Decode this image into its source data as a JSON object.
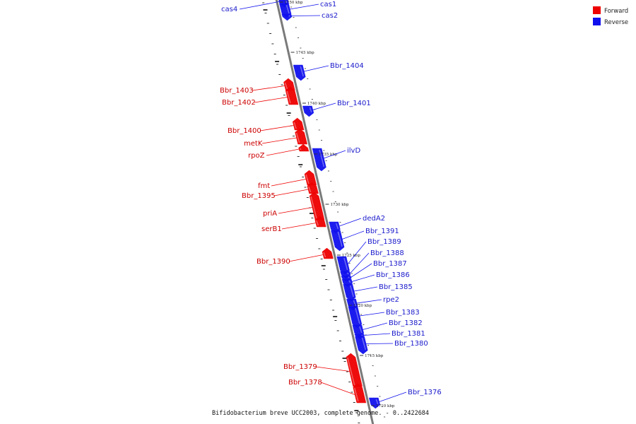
{
  "legend": {
    "forward_label": "Forward",
    "reverse_label": "Reverse",
    "forward_color": "#ee0000",
    "reverse_color": "#1010ee"
  },
  "caption": "Bifidobacterium breve UCC2003, complete genome. - 0..2422684",
  "scale_ticks": [
    "1750 kbp",
    "1745 kbp",
    "1740 kbp",
    "1735 kbp",
    "1730 kbp",
    "1725 kbp",
    "1720 kbp",
    "1715 kbp",
    "1710 kbp"
  ],
  "genes": [
    {
      "name": "cas4",
      "strand": "reverse"
    },
    {
      "name": "cas1",
      "strand": "reverse"
    },
    {
      "name": "cas2",
      "strand": "reverse"
    },
    {
      "name": "Bbr_1404",
      "strand": "reverse"
    },
    {
      "name": "Bbr_1403",
      "strand": "forward"
    },
    {
      "name": "Bbr_1402",
      "strand": "forward"
    },
    {
      "name": "Bbr_1401",
      "strand": "reverse"
    },
    {
      "name": "Bbr_1400",
      "strand": "forward"
    },
    {
      "name": "metK",
      "strand": "forward"
    },
    {
      "name": "rpoZ",
      "strand": "forward"
    },
    {
      "name": "ilvD",
      "strand": "reverse"
    },
    {
      "name": "fmt",
      "strand": "forward"
    },
    {
      "name": "Bbr_1395",
      "strand": "forward"
    },
    {
      "name": "priA",
      "strand": "forward"
    },
    {
      "name": "serB1",
      "strand": "forward"
    },
    {
      "name": "dedA2",
      "strand": "reverse"
    },
    {
      "name": "Bbr_1391",
      "strand": "reverse"
    },
    {
      "name": "Bbr_1389",
      "strand": "reverse"
    },
    {
      "name": "Bbr_1388",
      "strand": "reverse"
    },
    {
      "name": "Bbr_1387",
      "strand": "reverse"
    },
    {
      "name": "Bbr_1386",
      "strand": "reverse"
    },
    {
      "name": "Bbr_1385",
      "strand": "reverse"
    },
    {
      "name": "rpe2",
      "strand": "reverse"
    },
    {
      "name": "Bbr_1390",
      "strand": "forward"
    },
    {
      "name": "Bbr_1383",
      "strand": "reverse"
    },
    {
      "name": "Bbr_1382",
      "strand": "reverse"
    },
    {
      "name": "Bbr_1381",
      "strand": "reverse"
    },
    {
      "name": "Bbr_1380",
      "strand": "reverse"
    },
    {
      "name": "Bbr_1379",
      "strand": "forward"
    },
    {
      "name": "Bbr_1378",
      "strand": "forward"
    },
    {
      "name": "Bbr_1376",
      "strand": "reverse"
    }
  ]
}
